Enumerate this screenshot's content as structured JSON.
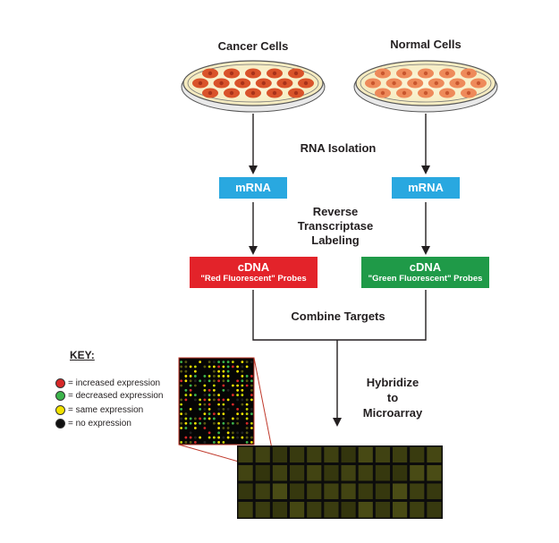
{
  "dishes": {
    "cancer_label": "Cancer Cells",
    "normal_label": "Normal Cells",
    "cancer_cell_color": "#d9532a",
    "normal_cell_color": "#ee8a5a"
  },
  "steps": {
    "rna_isolation": "RNA Isolation",
    "reverse_transcriptase": [
      "Reverse",
      "Transcriptase",
      "Labeling"
    ],
    "combine_targets": "Combine Targets",
    "hybridize": [
      "Hybridize",
      "to",
      "Microarray"
    ]
  },
  "boxes": {
    "mrna_left": "mRNA",
    "mrna_right": "mRNA",
    "cdna_red": {
      "title": "cDNA",
      "subtitle": "\"Red Fluorescent\" Probes"
    },
    "cdna_green": {
      "title": "cDNA",
      "subtitle": "\"Green Fluorescent\" Probes"
    }
  },
  "colors": {
    "mrna": "#29a8e0",
    "red_probe": "#e3232a",
    "green_probe": "#1f9a48",
    "zoom_lines": "#c0392b"
  },
  "key": {
    "title": "KEY:",
    "items": [
      {
        "color": "#d62828",
        "label": "= increased expression"
      },
      {
        "color": "#3cb44b",
        "label": "= decreased expression"
      },
      {
        "color": "#f2e200",
        "label": "= same expression"
      },
      {
        "color": "#111111",
        "label": "= no expression"
      }
    ]
  }
}
